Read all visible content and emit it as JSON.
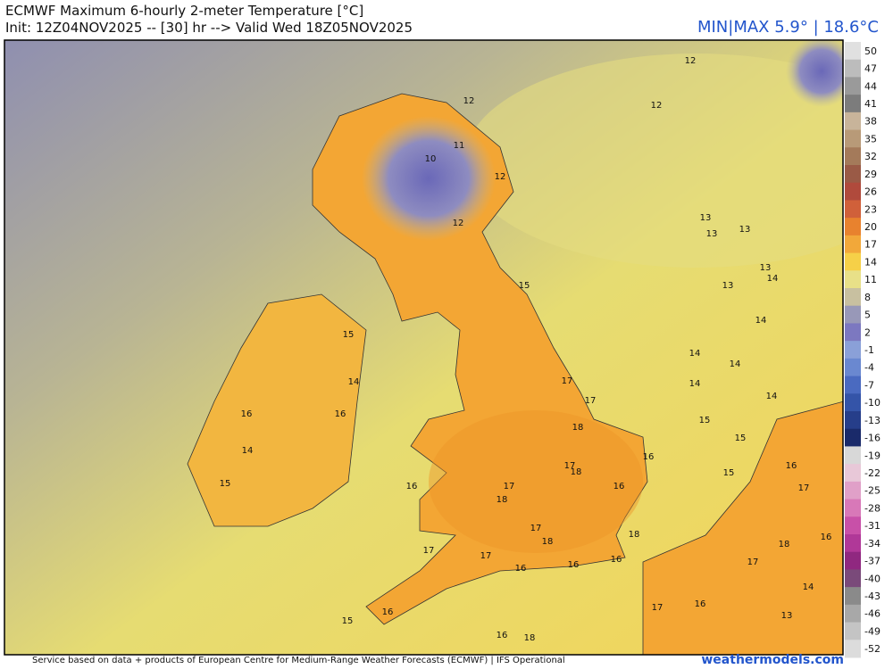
{
  "header": {
    "title": "ECMWF Maximum 6-hourly 2-meter Temperature [°C]",
    "subtitle": "Init: 12Z04NOV2025 -- [30] hr --> Valid Wed 18Z05NOV2025",
    "min_max": "MIN|MAX 5.9° | 18.6°C"
  },
  "colorbar": {
    "ticks": [
      50,
      47,
      44,
      41,
      38,
      35,
      32,
      29,
      26,
      23,
      20,
      17,
      14,
      11,
      8,
      5,
      2,
      -1,
      -4,
      -7,
      -10,
      -13,
      -16,
      -19,
      -22,
      -25,
      -28,
      -31,
      -34,
      -37,
      -40,
      -43,
      -46,
      -49,
      -52
    ],
    "colors": [
      "#e0e0e0",
      "#bcbcbc",
      "#9a9a9a",
      "#7c7c7c",
      "#c8b49a",
      "#b89a78",
      "#a47a5a",
      "#9a5a46",
      "#b04a3c",
      "#d0603a",
      "#e8822e",
      "#f2a83a",
      "#f6d048",
      "#e8e088",
      "#c8c0a0",
      "#9898b8",
      "#7c78c0",
      "#8aa0d8",
      "#6a88d0",
      "#4a6ac0",
      "#3454a8",
      "#263e8a",
      "#1a2a6a",
      "#d8d8d8",
      "#e8c8d8",
      "#e0a0c8",
      "#d878b8",
      "#c850a8",
      "#b03898",
      "#902880",
      "#7a4a7a",
      "#8a8a8a",
      "#a8a8a8",
      "#c4c4c4",
      "#dcdcdc"
    ]
  },
  "map_values": [
    12,
    12,
    12,
    10,
    11,
    12,
    12,
    13,
    13,
    13,
    13,
    13,
    14,
    15,
    14,
    15,
    14,
    14,
    14,
    14,
    14,
    15,
    15,
    16,
    16,
    14,
    15,
    16,
    17,
    17,
    18,
    17,
    18,
    16,
    16,
    17,
    18,
    17,
    18,
    17,
    17,
    16,
    16,
    16,
    18,
    15,
    16,
    17,
    16,
    15,
    16,
    17,
    17,
    18,
    16,
    13,
    14,
    16,
    18
  ],
  "footer": {
    "credit": "Service based on data + products of European Centre for Medium-Range Weather Forecasts (ECMWF) | IFS Operational",
    "site": "weathermodels.com"
  }
}
